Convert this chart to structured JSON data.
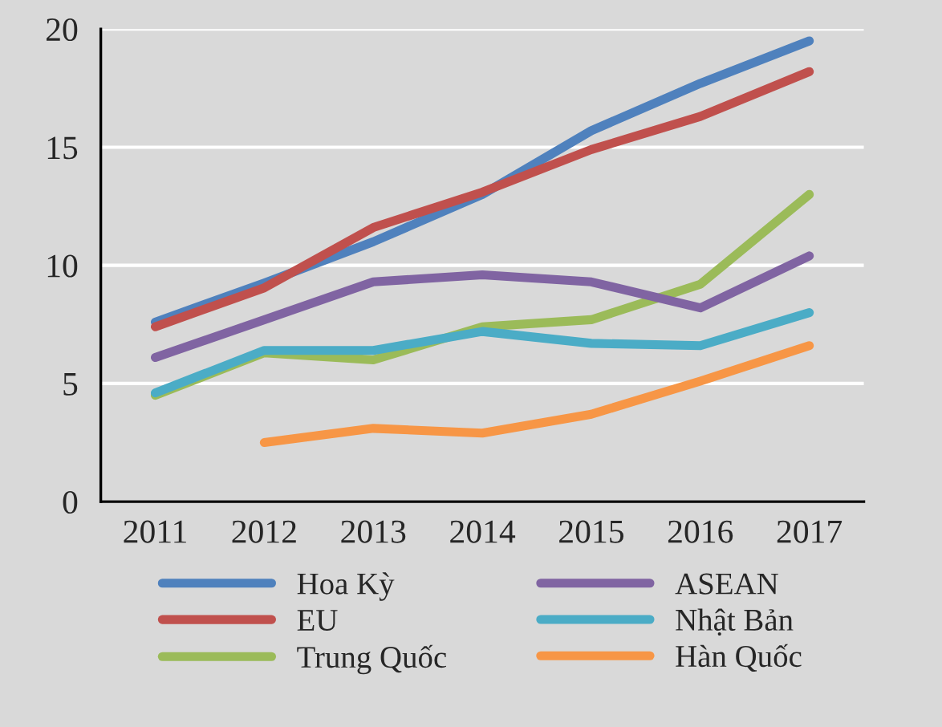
{
  "chart_data": {
    "type": "line",
    "categories": [
      "2011",
      "2012",
      "2013",
      "2014",
      "2015",
      "2016",
      "2017"
    ],
    "series": [
      {
        "name": "Hoa Kỳ",
        "color": "#4f81bd",
        "values": [
          7.6,
          9.25,
          11.0,
          13.0,
          15.7,
          17.7,
          19.5
        ]
      },
      {
        "name": "EU",
        "color": "#c0504d",
        "values": [
          7.4,
          9.05,
          11.6,
          13.1,
          14.9,
          16.3,
          18.2
        ]
      },
      {
        "name": "Trung Quốc",
        "color": "#9bbb59",
        "values": [
          4.5,
          6.3,
          6.0,
          7.4,
          7.7,
          9.2,
          13.0
        ]
      },
      {
        "name": "ASEAN",
        "color": "#8064a2",
        "values": [
          6.1,
          7.7,
          9.3,
          9.6,
          9.3,
          8.2,
          10.4
        ]
      },
      {
        "name": "Nhật Bản",
        "color": "#4bacc6",
        "values": [
          4.6,
          6.4,
          6.4,
          7.2,
          6.7,
          6.6,
          8.0
        ]
      },
      {
        "name": "Hàn Quốc",
        "color": "#f79646",
        "values": [
          null,
          2.5,
          3.1,
          2.9,
          3.7,
          5.1,
          6.6
        ]
      }
    ],
    "ylim": [
      0,
      20
    ],
    "yticks": [
      0,
      5,
      10,
      15,
      20
    ],
    "grid": "y",
    "legend": "bottom",
    "marker": "none",
    "line_style": "solid"
  }
}
